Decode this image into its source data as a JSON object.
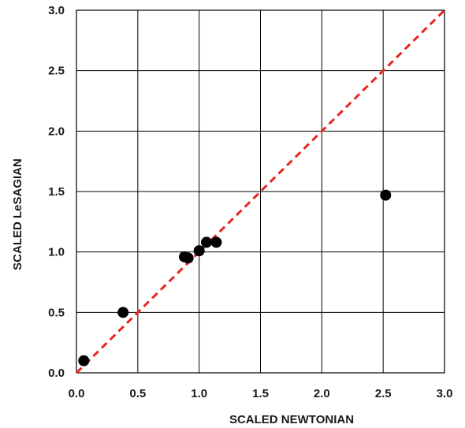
{
  "chart_data": {
    "type": "scatter",
    "title": "",
    "xlabel": "SCALED NEWTONIAN",
    "ylabel": "SCALED LeSAGIAN",
    "xlim": [
      0,
      3
    ],
    "ylim": [
      0,
      3
    ],
    "x_ticks": [
      "0.0",
      "0.5",
      "1.0",
      "1.5",
      "2.0",
      "2.5",
      "3.0"
    ],
    "y_ticks": [
      "0.0",
      "0.5",
      "1.0",
      "1.5",
      "2.0",
      "2.5",
      "3.0"
    ],
    "grid": true,
    "series": [
      {
        "points": [
          {
            "x": 0.06,
            "y": 0.1
          },
          {
            "x": 0.38,
            "y": 0.5
          },
          {
            "x": 0.88,
            "y": 0.96
          },
          {
            "x": 0.91,
            "y": 0.95
          },
          {
            "x": 1.0,
            "y": 1.01
          },
          {
            "x": 1.06,
            "y": 1.08
          },
          {
            "x": 1.14,
            "y": 1.08
          },
          {
            "x": 2.52,
            "y": 1.47
          }
        ],
        "color": "#000000"
      }
    ],
    "reference_line": {
      "from": [
        0,
        0
      ],
      "to": [
        3,
        3
      ],
      "color": "#e8251f",
      "style": "dashed"
    }
  }
}
